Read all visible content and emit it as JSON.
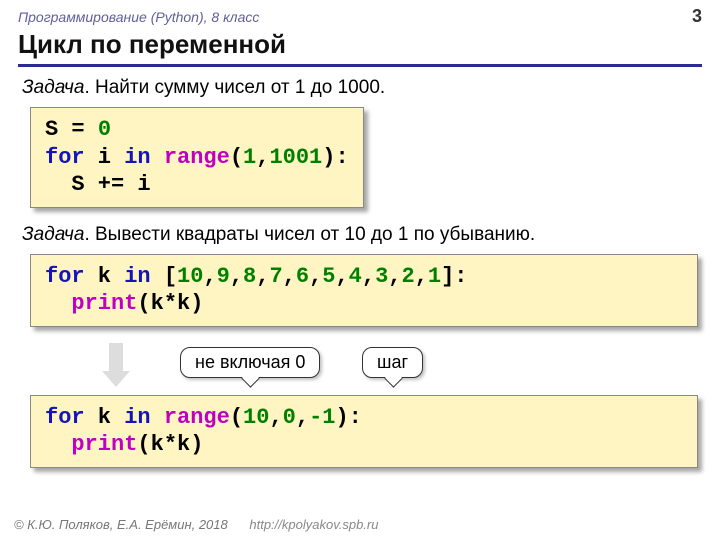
{
  "header": {
    "course": "Программирование (Python), 8 класс",
    "page": "3"
  },
  "title": "Цикл по переменной",
  "task1": {
    "label": "Задача",
    "text": ". Найти сумму чисел от 1 до 1000."
  },
  "code1": {
    "l1a": "S = ",
    "l1b": "0",
    "l2a": "for",
    "l2b": " i ",
    "l2c": "in",
    "l2d": " ",
    "l2e": "range",
    "l2f": "(",
    "l2g": "1",
    "l2h": ",",
    "l2i": "1001",
    "l2j": "):",
    "l3": "  S += i"
  },
  "task2": {
    "label": "Задача",
    "text": ". Вывести квадраты чисел от 10 до 1 по убыванию."
  },
  "code2": {
    "l1a": "for",
    "l1b": " k ",
    "l1c": "in",
    "l1d": " [",
    "n10": "10",
    "n9": "9",
    "n8": "8",
    "n7": "7",
    "n6": "6",
    "n5": "5",
    "n4": "4",
    "n3": "3",
    "n2": "2",
    "n1": "1",
    "l1e": "]:",
    "c": ",",
    "l2a": "  ",
    "l2b": "print",
    "l2c": "(k*k)"
  },
  "callouts": {
    "c1": "не включая 0",
    "c2": "шаг"
  },
  "code3": {
    "l1a": "for",
    "l1b": " k ",
    "l1c": "in",
    "l1d": " ",
    "l1e": "range",
    "l1f": "(",
    "n10": "10",
    "c": ",",
    "n0": "0",
    "nm1": "-1",
    "l1g": "):",
    "l2a": "  ",
    "l2b": "print",
    "l2c": "(k*k)"
  },
  "footer": {
    "copyright": "© К.Ю. Поляков, Е.А. Ерёмин, 2018",
    "url": "http://kpolyakov.spb.ru"
  },
  "colors": {
    "keyword": "#1414b8",
    "function": "#c000c0",
    "number": "#008000",
    "code_bg": "#fff5c2",
    "title_rule": "#2c2c8a",
    "header_text": "#5f5f9c"
  }
}
